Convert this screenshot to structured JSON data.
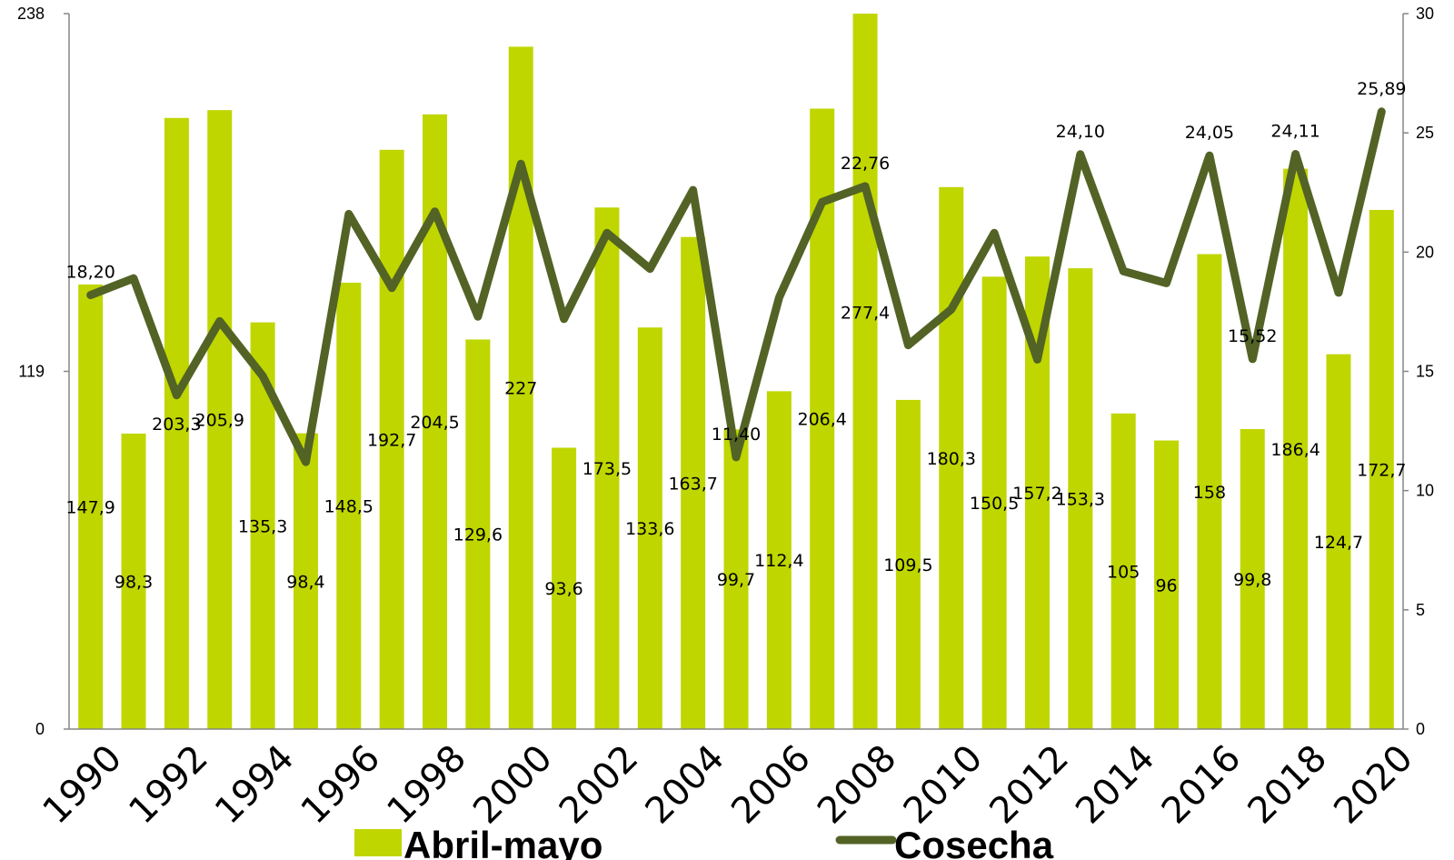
{
  "chart_data": {
    "type": "bar",
    "x": [
      1990,
      1991,
      1992,
      1993,
      1994,
      1995,
      1996,
      1997,
      1998,
      1999,
      2000,
      2001,
      2002,
      2003,
      2004,
      2005,
      2006,
      2007,
      2008,
      2009,
      2010,
      2011,
      2012,
      2013,
      2014,
      2015,
      2016,
      2017,
      2018,
      2019,
      2020
    ],
    "x_tick_labels": [
      "1990",
      "1992",
      "1994",
      "1996",
      "1998",
      "2000",
      "2002",
      "2004",
      "2006",
      "2008",
      "2010",
      "2012",
      "2014",
      "2016",
      "2018",
      "2020"
    ],
    "series": [
      {
        "name": "Abril-mayo",
        "type": "bar",
        "axis": "left",
        "color": "#bfd600",
        "values": [
          147.9,
          98.3,
          203.3,
          205.9,
          135.3,
          98.4,
          148.5,
          192.7,
          204.5,
          129.6,
          227,
          93.6,
          173.5,
          133.6,
          163.7,
          99.7,
          112.4,
          206.4,
          277.4,
          109.5,
          180.3,
          150.5,
          157.2,
          153.3,
          105,
          96,
          158,
          99.8,
          186.4,
          124.7,
          172.7
        ],
        "data_labels": [
          "147,9",
          "98,3",
          "203,3",
          "205,9",
          "135,3",
          "98,4",
          "148,5",
          "192,7",
          "204,5",
          "129,6",
          "227",
          "93,6",
          "173,5",
          "133,6",
          "163,7",
          "99,7",
          "112,4",
          "206,4",
          "277,4",
          "109,5",
          "180,3",
          "150,5",
          "157,2",
          "153,3",
          "105",
          "96",
          "158",
          "99,8",
          "186,4",
          "124,7",
          "172,7"
        ]
      },
      {
        "name": "Cosecha",
        "type": "line",
        "axis": "right",
        "color": "#526325",
        "values": [
          18.2,
          18.9,
          14.0,
          17.1,
          14.8,
          11.2,
          21.6,
          18.5,
          21.7,
          17.3,
          23.7,
          17.2,
          20.8,
          19.3,
          22.6,
          11.4,
          18.1,
          22.1,
          22.76,
          16.1,
          17.6,
          20.8,
          15.5,
          24.1,
          19.2,
          18.7,
          24.05,
          15.52,
          24.11,
          18.3,
          25.89
        ],
        "point_labels": [
          {
            "year": 1990,
            "text": "18,20"
          },
          {
            "year": 2005,
            "text": "11,40"
          },
          {
            "year": 2008,
            "text": "22,76"
          },
          {
            "year": 2013,
            "text": "24,10"
          },
          {
            "year": 2016,
            "text": "24,05"
          },
          {
            "year": 2017,
            "text": "15,52"
          },
          {
            "year": 2018,
            "text": "24,11"
          },
          {
            "year": 2020,
            "text": "25,89"
          }
        ]
      }
    ],
    "left_axis": {
      "ticks": [
        0,
        119,
        238
      ],
      "tick_labels": [
        "0",
        "119",
        "238"
      ],
      "ylim": [
        0,
        238
      ]
    },
    "right_axis": {
      "ticks": [
        0,
        5,
        10,
        15,
        20,
        25,
        30
      ],
      "tick_labels": [
        "0",
        "5",
        "10",
        "15",
        "20",
        "25",
        "30"
      ],
      "ylim": [
        0,
        30
      ]
    },
    "grid": false,
    "legend": {
      "placement": "bottom",
      "entries": [
        "Abril-mayo",
        "Cosecha"
      ]
    }
  }
}
